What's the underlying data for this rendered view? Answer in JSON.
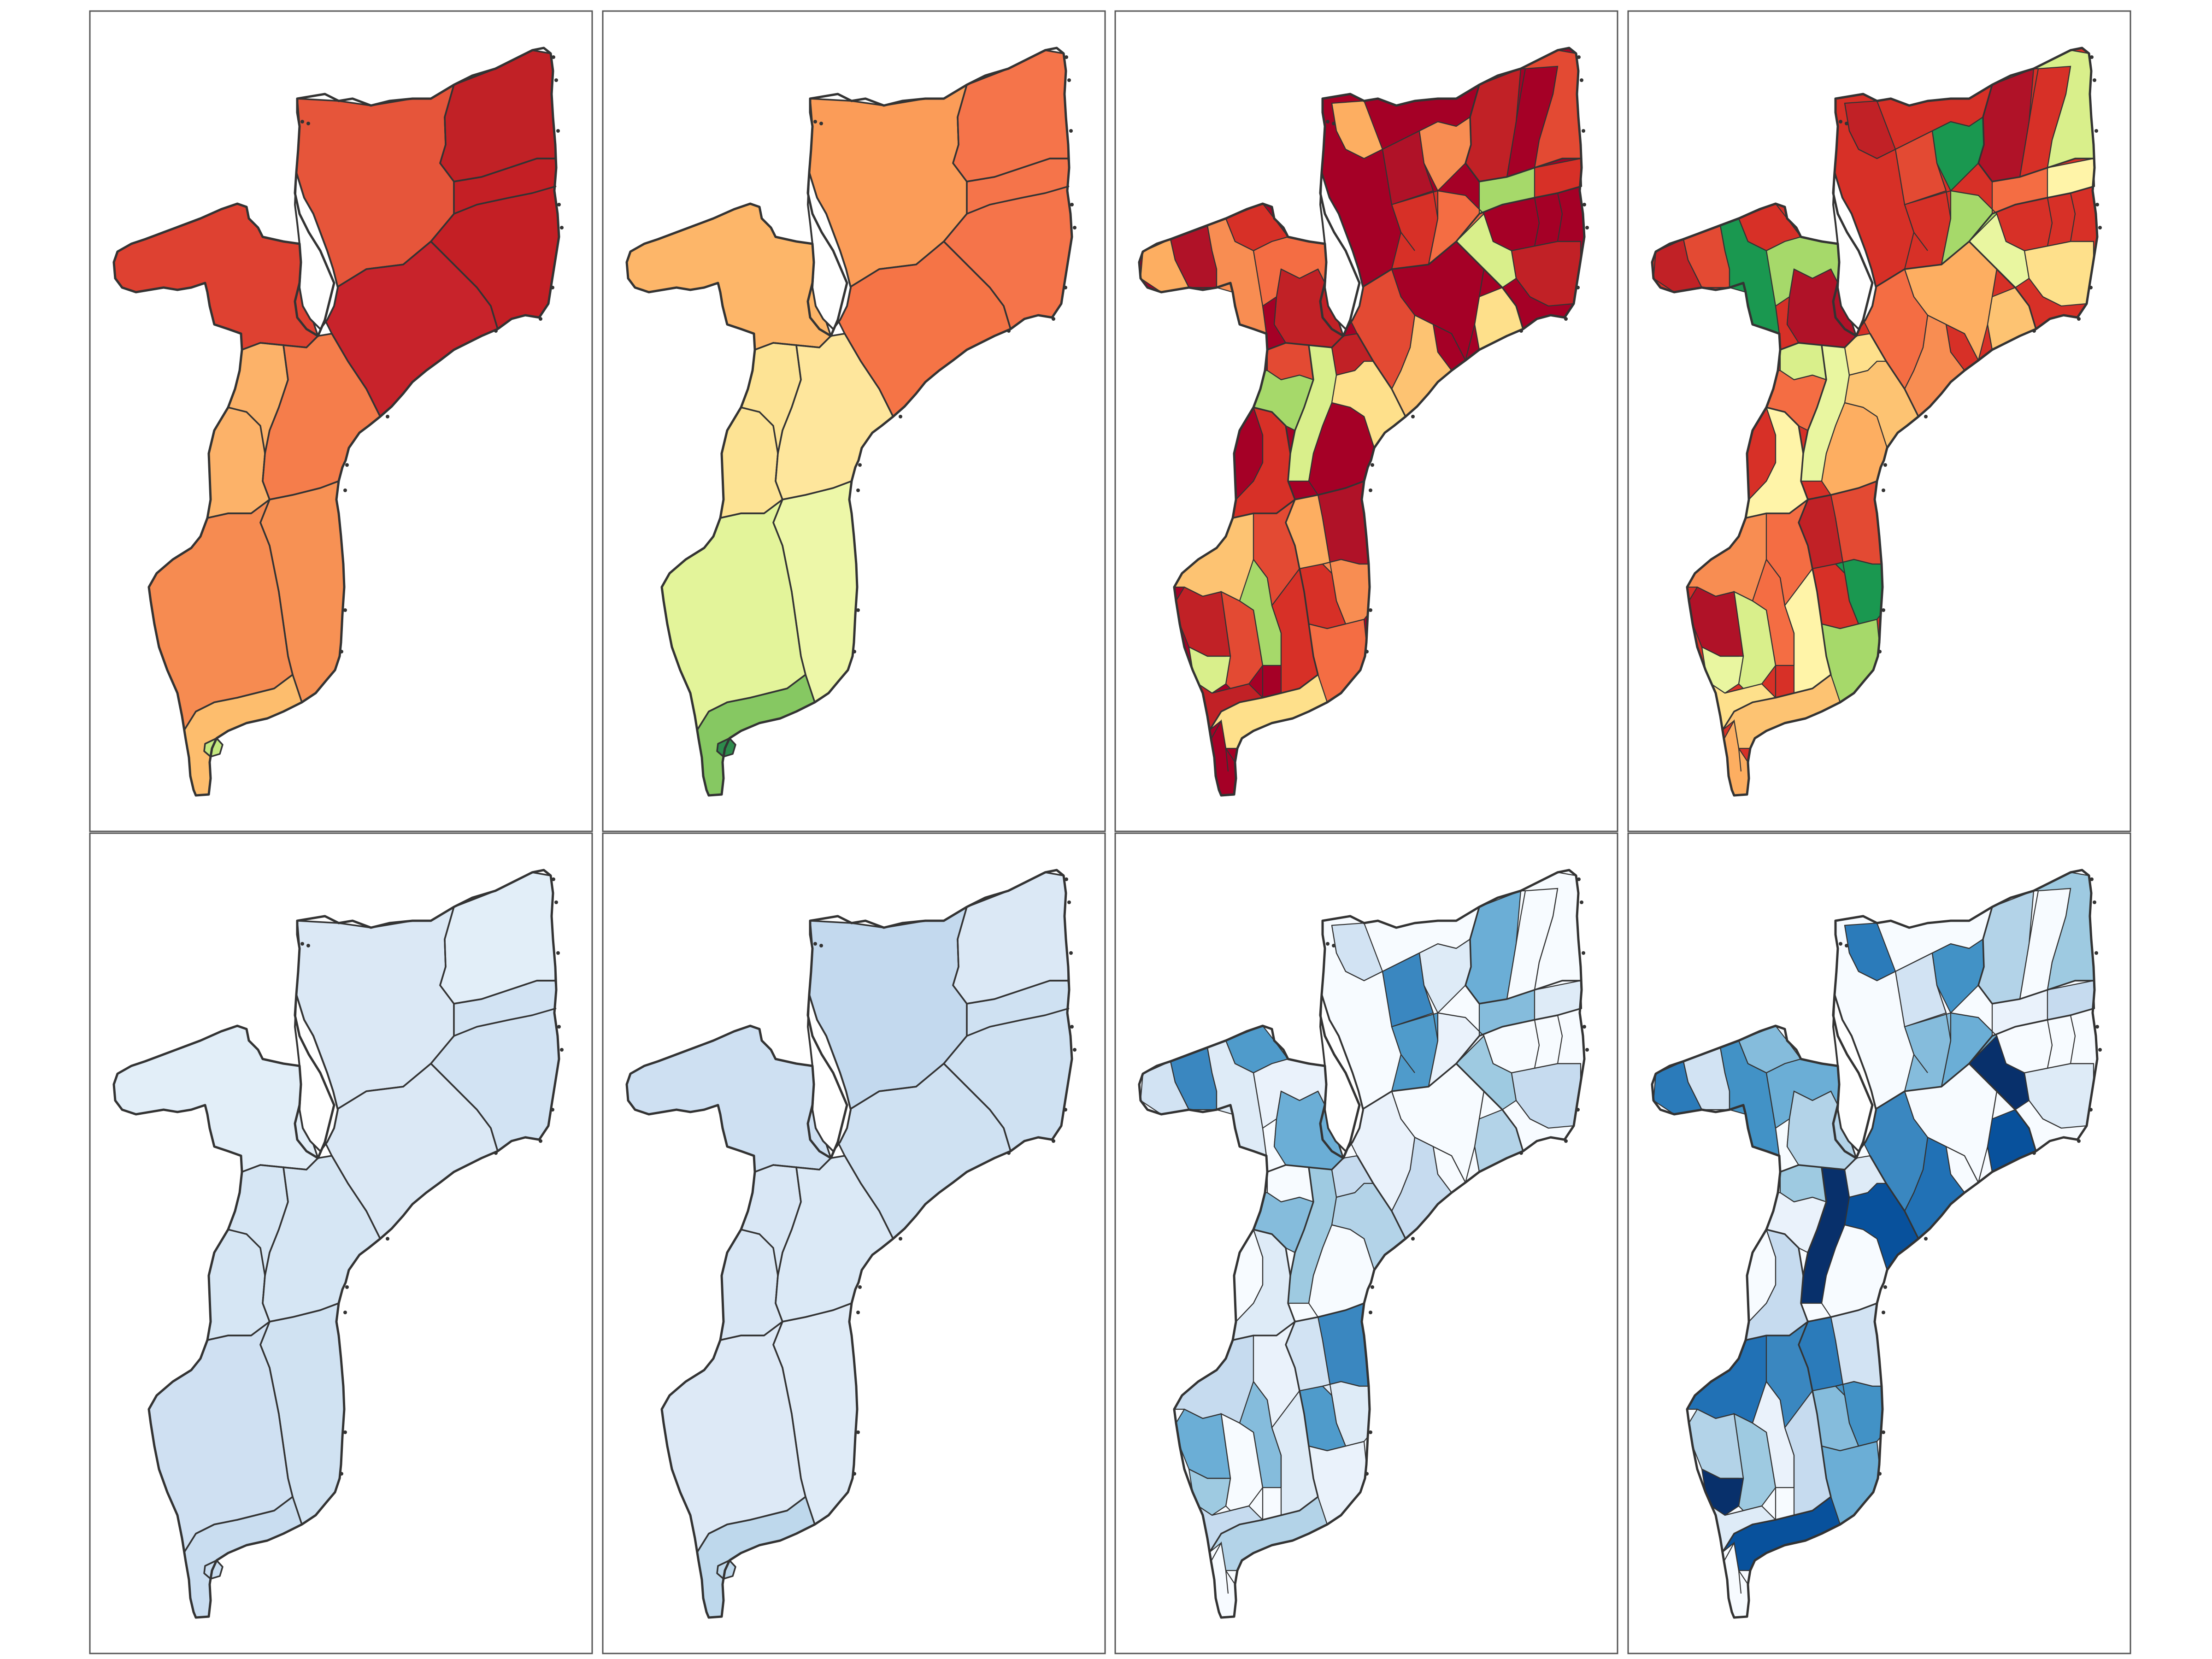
{
  "figure": {
    "panels": [
      {
        "id": "row1-col1",
        "palette": "red-yellow-green",
        "level": "province",
        "colors": {
          "niassa": "#e6553a",
          "cabo_delgado": "#c12126",
          "tete": "#de4131",
          "nampula": "#c41f25",
          "zambezia": "#c8232b",
          "manica": "#fcb269",
          "sofala": "#f57d4b",
          "inhambane": "#f79154",
          "gaza": "#f68b51",
          "maputo": "#fdbd6d",
          "maputo_city": "#c4e880"
        }
      },
      {
        "id": "row1-col2",
        "palette": "red-yellow-green",
        "level": "province",
        "colors": {
          "niassa": "#fb9c58",
          "cabo_delgado": "#f5744a",
          "tete": "#fdb669",
          "nampula": "#f5744a",
          "zambezia": "#f57446",
          "manica": "#fde394",
          "sofala": "#fee69c",
          "inhambane": "#edf7a8",
          "gaza": "#e3f49a",
          "maputo": "#86c862",
          "maputo_city": "#2e8b4c"
        }
      },
      {
        "id": "row1-col3",
        "palette": "red-yellow-green",
        "level": "district",
        "colors": [
          "#a50026",
          "#c12126",
          "#d73027",
          "#e34a33",
          "#f46d43",
          "#f88d52",
          "#fdae61",
          "#fdc372",
          "#fee08b",
          "#d9ef8b",
          "#a6d96a",
          "#c12126",
          "#d73027",
          "#b01228",
          "#e34a33"
        ]
      },
      {
        "id": "row1-col4",
        "palette": "red-yellow-green",
        "level": "district",
        "colors": [
          "#d73027",
          "#e34a33",
          "#f46d43",
          "#fdae61",
          "#fee08b",
          "#fff4a8",
          "#d9ef8b",
          "#a6d96a",
          "#1a9850",
          "#c12126",
          "#f88d52",
          "#fdc372",
          "#e9f6a0",
          "#f46d43",
          "#b01228"
        ]
      },
      {
        "id": "row2-col1",
        "palette": "blues",
        "level": "province",
        "colors": {
          "niassa": "#dbe8f5",
          "cabo_delgado": "#e2eef8",
          "tete": "#e2eef8",
          "nampula": "#d2e3f3",
          "zambezia": "#dbe8f5",
          "manica": "#d6e6f4",
          "sofala": "#d6e6f4",
          "inhambane": "#d0e2f2",
          "gaza": "#cfe0f2",
          "maputo": "#c9ddf0",
          "maputo_city": "#c9ddf0"
        }
      },
      {
        "id": "row2-col2",
        "palette": "blues",
        "level": "province",
        "colors": {
          "niassa": "#c3d9ee",
          "cabo_delgado": "#dbe8f5",
          "tete": "#cee0f2",
          "nampula": "#cfe1f2",
          "zambezia": "#cfe1f2",
          "manica": "#d9e7f5",
          "sofala": "#dbe9f6",
          "inhambane": "#dfebf7",
          "gaza": "#dde9f6",
          "maputo": "#bed8ec",
          "maputo_city": "#bed8ec"
        }
      },
      {
        "id": "row2-col3",
        "palette": "blues",
        "level": "district",
        "colors": [
          "#f7fbff",
          "#eaf2fb",
          "#deebf7",
          "#d2e3f3",
          "#c6dbef",
          "#b3d3e8",
          "#9ecae1",
          "#85bcdc",
          "#6baed6",
          "#4f9bcb",
          "#3a87c0",
          "#eaf2fb",
          "#f7fbff",
          "#c6dbef",
          "#deebf7"
        ]
      },
      {
        "id": "row2-col4",
        "palette": "blues",
        "level": "district",
        "colors": [
          "#f7fbff",
          "#deebf7",
          "#c6dbef",
          "#9ecae1",
          "#6baed6",
          "#4292c6",
          "#2b7bba",
          "#2171b5",
          "#08519c",
          "#08306b",
          "#eaf2fb",
          "#b3d3e8",
          "#85bcdc",
          "#d2e3f3",
          "#3a87c0"
        ]
      }
    ]
  }
}
